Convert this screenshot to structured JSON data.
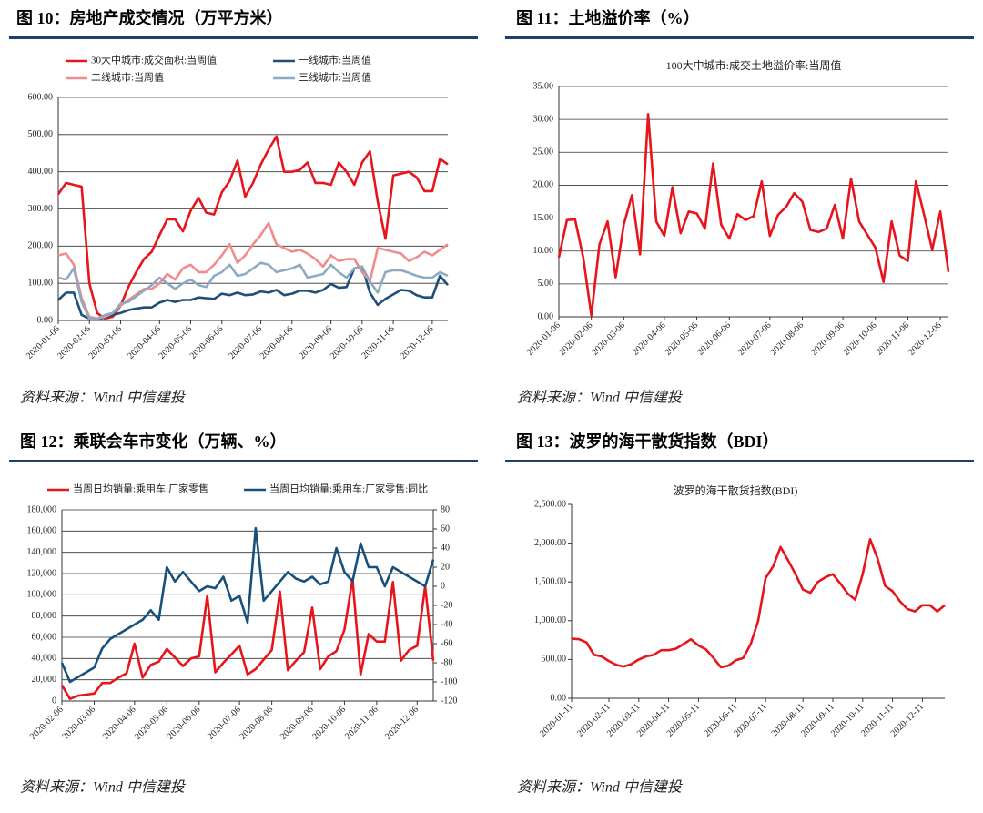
{
  "chart_data": [
    {
      "type": "line",
      "title": "图 10：房地产成交情况（万平方米）",
      "source": "资料来源：Wind 中信建投",
      "categories": [
        "2020-01-06",
        null,
        null,
        null,
        "2020-02-06",
        null,
        null,
        null,
        "2020-03-06",
        null,
        null,
        null,
        null,
        "2020-04-06",
        null,
        null,
        null,
        "2020-05-06",
        null,
        null,
        null,
        "2020-06-06",
        null,
        null,
        null,
        null,
        "2020-07-06",
        null,
        null,
        null,
        "2020-08-06",
        null,
        null,
        null,
        null,
        "2020-09-06",
        null,
        null,
        null,
        "2020-10-06",
        null,
        null,
        null,
        "2020-11-06",
        null,
        null,
        null,
        null,
        "2020-12-06",
        null,
        null
      ],
      "series": [
        {
          "name": "30大中城市:成交面积:当周值",
          "color": "#e8141b",
          "values": [
            340,
            370,
            365,
            360,
            100,
            20,
            5,
            10,
            40,
            90,
            130,
            165,
            185,
            230,
            272,
            272,
            240,
            295,
            330,
            290,
            285,
            345,
            375,
            430,
            333,
            370,
            420,
            460,
            495,
            400,
            400,
            405,
            425,
            370,
            370,
            365,
            425,
            400,
            365,
            425,
            455,
            320,
            220,
            390,
            395,
            400,
            385,
            348,
            348,
            435,
            420
          ]
        },
        {
          "name": "一线城市:当周值",
          "color": "#1f4e79",
          "values": [
            55,
            75,
            75,
            15,
            5,
            3,
            8,
            15,
            20,
            28,
            32,
            35,
            35,
            48,
            55,
            50,
            55,
            55,
            62,
            60,
            58,
            72,
            68,
            75,
            68,
            70,
            78,
            75,
            82,
            68,
            72,
            80,
            80,
            75,
            82,
            98,
            88,
            90,
            140,
            145,
            75,
            42,
            58,
            70,
            82,
            80,
            68,
            62,
            62,
            120,
            95
          ]
        },
        {
          "name": "二线城市:当周值",
          "color": "#f28b8b",
          "values": [
            175,
            180,
            150,
            60,
            10,
            5,
            10,
            20,
            40,
            55,
            70,
            85,
            85,
            100,
            125,
            110,
            140,
            150,
            130,
            130,
            150,
            175,
            205,
            155,
            175,
            205,
            230,
            262,
            205,
            195,
            185,
            190,
            180,
            165,
            145,
            175,
            160,
            165,
            165,
            130,
            105,
            195,
            190,
            185,
            180,
            160,
            170,
            185,
            175,
            190,
            205
          ]
        },
        {
          "name": "三线城市:当周值",
          "color": "#8eaac2",
          "values": [
            115,
            110,
            140,
            50,
            5,
            5,
            15,
            20,
            45,
            50,
            65,
            80,
            95,
            115,
            100,
            85,
            100,
            110,
            95,
            90,
            120,
            130,
            150,
            120,
            125,
            140,
            155,
            150,
            130,
            135,
            140,
            150,
            115,
            120,
            125,
            150,
            130,
            115,
            140,
            145,
            105,
            75,
            130,
            135,
            135,
            128,
            120,
            115,
            115,
            130,
            120
          ]
        }
      ],
      "ylim": [
        0,
        600
      ],
      "yticks": [
        {
          "value": 0,
          "label": "0.00"
        },
        {
          "value": 100,
          "label": "100.00"
        },
        {
          "value": 200,
          "label": "200.00"
        },
        {
          "value": 300,
          "label": "300.00"
        },
        {
          "value": 400,
          "label": "400.00"
        },
        {
          "value": 500,
          "label": "500.00"
        },
        {
          "value": 600,
          "label": "600.00"
        }
      ],
      "grid": true
    },
    {
      "type": "line",
      "title": "图 11：土地溢价率（%）",
      "subtitle": "100大中城市:成交土地溢价率:当周值",
      "source": "资料来源：Wind 中信建投",
      "categories": [
        "2020-01-06",
        null,
        null,
        null,
        "2020-02-06",
        null,
        null,
        null,
        "2020-03-06",
        null,
        null,
        null,
        null,
        "2020-04-06",
        null,
        null,
        null,
        "2020-05-06",
        null,
        null,
        null,
        "2020-06-06",
        null,
        null,
        null,
        null,
        "2020-07-06",
        null,
        null,
        null,
        "2020-08-06",
        null,
        null,
        null,
        null,
        "2020-09-06",
        null,
        null,
        null,
        "2020-10-06",
        null,
        null,
        null,
        "2020-11-06",
        null,
        null,
        null,
        "2020-12-06",
        null
      ],
      "color": "#e8141b",
      "values": [
        9,
        14.7,
        14.8,
        9,
        0.2,
        11,
        14.5,
        6,
        14,
        18.5,
        9.5,
        30.8,
        14.5,
        12.3,
        19.7,
        12.7,
        16,
        15.7,
        13.4,
        23.3,
        14,
        11.9,
        15.6,
        14.7,
        15.3,
        20.6,
        12.3,
        15.5,
        16.7,
        18.8,
        17.5,
        13.2,
        12.9,
        13.4,
        17,
        11.9,
        21,
        14.5,
        12.5,
        10.5,
        5.3,
        14.5,
        9.3,
        8.5,
        20.6,
        15.5,
        10.2,
        16,
        6.8
      ],
      "ylim": [
        0,
        35
      ],
      "yticks": [
        {
          "value": 0,
          "label": "0.00"
        },
        {
          "value": 5,
          "label": "5.00"
        },
        {
          "value": 10,
          "label": "10.00"
        },
        {
          "value": 15,
          "label": "15.00"
        },
        {
          "value": 20,
          "label": "20.00"
        },
        {
          "value": 25,
          "label": "25.00"
        },
        {
          "value": 30,
          "label": "30.00"
        },
        {
          "value": 35,
          "label": "35.00"
        }
      ],
      "grid": true
    },
    {
      "type": "line",
      "title": "图 12：乘联会车市变化（万辆、%）",
      "source": "资料来源：Wind 中信建投",
      "categories": [
        "2020-02-06",
        null,
        null,
        null,
        "2020-03-06",
        null,
        null,
        null,
        null,
        "2020-04-06",
        null,
        null,
        null,
        "2020-05-06",
        null,
        null,
        null,
        "2020-06-06",
        null,
        null,
        null,
        null,
        "2020-07-06",
        null,
        null,
        null,
        "2020-08-06",
        null,
        null,
        null,
        null,
        "2020-09-06",
        null,
        null,
        null,
        "2020-10-06",
        null,
        null,
        null,
        "2020-11-06",
        null,
        null,
        null,
        null,
        "2020-12-06",
        null,
        null
      ],
      "series": [
        {
          "name": "当周日均销量:乘用车:厂家零售",
          "color": "#e8141b",
          "values": [
            15000,
            2000,
            5000,
            6000,
            7000,
            17000,
            17000,
            22000,
            26000,
            54000,
            22000,
            34000,
            37000,
            49000,
            41000,
            33000,
            40000,
            42000,
            99000,
            27000,
            36000,
            44000,
            52000,
            25000,
            30000,
            39000,
            48000,
            103000,
            29000,
            38000,
            46000,
            88000,
            30000,
            42000,
            47000,
            67000,
            115000,
            25000,
            63000,
            56000,
            56000,
            112000,
            38000,
            48000,
            52000,
            108000,
            38000
          ]
        },
        {
          "name": "当周日均销量:乘用车:厂家零售:同比",
          "color": "#17507a",
          "axis": "y2",
          "values": [
            -80,
            -100,
            -95,
            -90,
            -85,
            -65,
            -55,
            -50,
            -45,
            -40,
            -35,
            -25,
            -35,
            20,
            5,
            15,
            5,
            -5,
            0,
            -2,
            10,
            -15,
            -10,
            -38,
            61,
            -15,
            -5,
            5,
            15,
            8,
            5,
            10,
            2,
            5,
            40,
            15,
            5,
            45,
            20,
            20,
            0,
            20,
            15,
            10,
            5,
            0,
            28
          ]
        }
      ],
      "ylim": [
        0,
        180000
      ],
      "yticks": [
        0,
        {
          "value": 20000,
          "label": "20,000"
        },
        {
          "value": 40000,
          "label": "40,000"
        },
        {
          "value": 60000,
          "label": "60,000"
        },
        {
          "value": 80000,
          "label": "80,000"
        },
        {
          "value": 100000,
          "label": "100,000"
        },
        {
          "value": 120000,
          "label": "120,000"
        },
        {
          "value": 140000,
          "label": "140,000"
        },
        {
          "value": 160000,
          "label": "160,000"
        },
        {
          "value": 180000,
          "label": "180,000"
        }
      ],
      "y2lim": [
        -120,
        80
      ],
      "y2ticks": [
        -120,
        -100,
        -80,
        -60,
        -40,
        -20,
        0,
        20,
        40,
        60,
        80
      ],
      "grid": true
    },
    {
      "type": "line",
      "title": "图 13：波罗的海干散货指数（BDI）",
      "subtitle": "波罗的海干散货指数(BDI)",
      "source": "资料来源：Wind 中信建投",
      "categories": [
        "2020-01-11",
        null,
        null,
        null,
        null,
        "2020-02-11",
        null,
        null,
        null,
        "2020-03-11",
        null,
        null,
        null,
        "2020-04-11",
        null,
        null,
        null,
        "2020-05-11",
        null,
        null,
        null,
        null,
        "2020-06-11",
        null,
        null,
        null,
        "2020-07-11",
        null,
        null,
        null,
        null,
        "2020-08-11",
        null,
        null,
        null,
        "2020-09-11",
        null,
        null,
        null,
        "2020-10-11",
        null,
        null,
        null,
        "2020-11-11",
        null,
        null,
        null,
        "2020-12-11",
        null,
        null,
        null
      ],
      "color": "#e8141b",
      "values": [
        770,
        760,
        720,
        560,
        540,
        480,
        430,
        410,
        440,
        500,
        540,
        560,
        620,
        620,
        640,
        700,
        760,
        680,
        630,
        520,
        400,
        420,
        490,
        520,
        700,
        1000,
        1550,
        1700,
        1950,
        1780,
        1600,
        1400,
        1360,
        1500,
        1560,
        1600,
        1480,
        1350,
        1270,
        1600,
        2050,
        1800,
        1450,
        1380,
        1250,
        1150,
        1120,
        1200,
        1200,
        1120,
        1200
      ],
      "ylim": [
        0,
        2500
      ],
      "yticks": [
        {
          "value": 0,
          "label": "0.00"
        },
        {
          "value": 500,
          "label": "500.00"
        },
        {
          "value": 1000,
          "label": "1,000.00"
        },
        {
          "value": 1500,
          "label": "1,500.00"
        },
        {
          "value": 2000,
          "label": "2,000.00"
        },
        {
          "value": 2500,
          "label": "2,500.00"
        }
      ],
      "grid": false
    }
  ]
}
